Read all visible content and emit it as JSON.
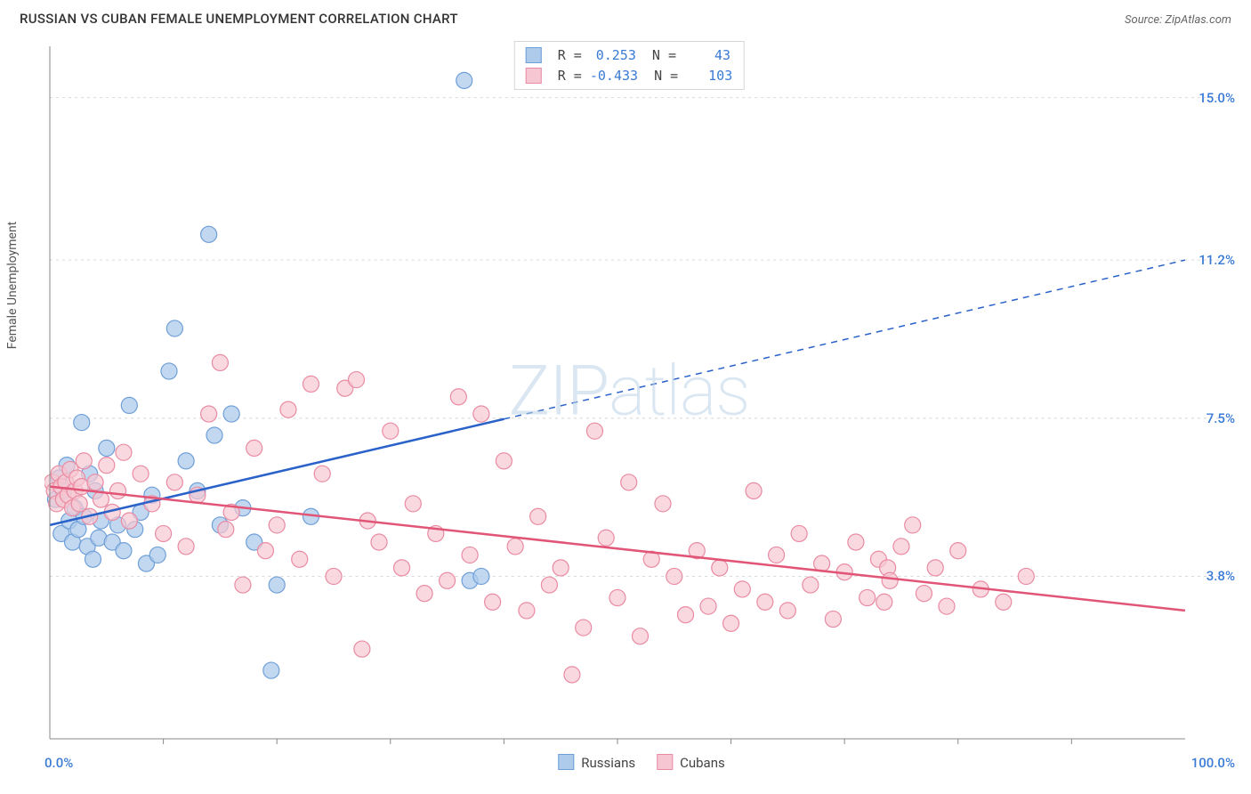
{
  "title": "RUSSIAN VS CUBAN FEMALE UNEMPLOYMENT CORRELATION CHART",
  "source": "Source: ZipAtlas.com",
  "y_axis_label": "Female Unemployment",
  "watermark_a": "ZIP",
  "watermark_b": "atlas",
  "chart": {
    "type": "scatter",
    "xlim": [
      0,
      100
    ],
    "ylim": [
      0,
      16.2
    ],
    "x_ticks_minor_step": 10,
    "y_gridlines": [
      3.8,
      7.5,
      11.2,
      15.0
    ],
    "y_grid_labels": [
      "3.8%",
      "7.5%",
      "11.2%",
      "15.0%"
    ],
    "x_left_label": "0.0%",
    "x_right_label": "100.0%",
    "background_color": "#ffffff",
    "grid_color": "#d9d9d9",
    "axis_color": "#888888",
    "label_color_blue": "#3a7bd5",
    "label_color_pink": "#e86d8a",
    "series": [
      {
        "name": "Russians",
        "legend_label": "Russians",
        "R": "0.253",
        "N": "43",
        "marker_fill": "#aecbeb",
        "marker_stroke": "#6f9fd8",
        "marker_opacity": 0.75,
        "marker_radius": 9,
        "line_color": "#2a62c9",
        "line_solid_end_x": 40,
        "regression": {
          "x1": 0,
          "y1": 5.0,
          "x2": 100,
          "y2": 11.2
        },
        "points": [
          [
            0.5,
            5.6
          ],
          [
            0.8,
            6.1
          ],
          [
            1.0,
            4.8
          ],
          [
            1.2,
            5.8
          ],
          [
            1.5,
            6.4
          ],
          [
            1.7,
            5.1
          ],
          [
            2.0,
            4.6
          ],
          [
            2.2,
            5.4
          ],
          [
            2.5,
            4.9
          ],
          [
            2.8,
            7.4
          ],
          [
            3.0,
            5.2
          ],
          [
            3.3,
            4.5
          ],
          [
            3.5,
            6.2
          ],
          [
            3.8,
            4.2
          ],
          [
            4.0,
            5.8
          ],
          [
            4.3,
            4.7
          ],
          [
            4.5,
            5.1
          ],
          [
            5.0,
            6.8
          ],
          [
            5.5,
            4.6
          ],
          [
            6.0,
            5.0
          ],
          [
            6.5,
            4.4
          ],
          [
            7.0,
            7.8
          ],
          [
            7.5,
            4.9
          ],
          [
            8.0,
            5.3
          ],
          [
            8.5,
            4.1
          ],
          [
            9.0,
            5.7
          ],
          [
            9.5,
            4.3
          ],
          [
            10.5,
            8.6
          ],
          [
            11.0,
            9.6
          ],
          [
            12.0,
            6.5
          ],
          [
            13.0,
            5.8
          ],
          [
            14.0,
            11.8
          ],
          [
            14.5,
            7.1
          ],
          [
            15.0,
            5.0
          ],
          [
            16.0,
            7.6
          ],
          [
            17.0,
            5.4
          ],
          [
            18.0,
            4.6
          ],
          [
            19.5,
            1.6
          ],
          [
            20.0,
            3.6
          ],
          [
            23.0,
            5.2
          ],
          [
            36.5,
            15.4
          ],
          [
            37.0,
            3.7
          ],
          [
            38.0,
            3.8
          ]
        ]
      },
      {
        "name": "Cubans",
        "legend_label": "Cubans",
        "R": "-0.433",
        "N": "103",
        "marker_fill": "#f6c7d2",
        "marker_stroke": "#e98ba3",
        "marker_opacity": 0.7,
        "marker_radius": 9,
        "line_color": "#e15577",
        "line_solid_end_x": 100,
        "regression": {
          "x1": 0,
          "y1": 5.9,
          "x2": 100,
          "y2": 3.0
        },
        "points": [
          [
            0.2,
            6.0
          ],
          [
            0.4,
            5.8
          ],
          [
            0.6,
            5.5
          ],
          [
            0.8,
            6.2
          ],
          [
            1.0,
            5.9
          ],
          [
            1.2,
            5.6
          ],
          [
            1.4,
            6.0
          ],
          [
            1.6,
            5.7
          ],
          [
            1.8,
            6.3
          ],
          [
            2.0,
            5.4
          ],
          [
            2.2,
            5.8
          ],
          [
            2.4,
            6.1
          ],
          [
            2.6,
            5.5
          ],
          [
            2.8,
            5.9
          ],
          [
            3.0,
            6.5
          ],
          [
            3.5,
            5.2
          ],
          [
            4.0,
            6.0
          ],
          [
            4.5,
            5.6
          ],
          [
            5.0,
            6.4
          ],
          [
            5.5,
            5.3
          ],
          [
            6.0,
            5.8
          ],
          [
            6.5,
            6.7
          ],
          [
            7.0,
            5.1
          ],
          [
            8.0,
            6.2
          ],
          [
            9.0,
            5.5
          ],
          [
            10.0,
            4.8
          ],
          [
            11.0,
            6.0
          ],
          [
            12.0,
            4.5
          ],
          [
            13.0,
            5.7
          ],
          [
            14.0,
            7.6
          ],
          [
            15.0,
            8.8
          ],
          [
            15.5,
            4.9
          ],
          [
            16.0,
            5.3
          ],
          [
            17.0,
            3.6
          ],
          [
            18.0,
            6.8
          ],
          [
            19.0,
            4.4
          ],
          [
            20.0,
            5.0
          ],
          [
            21.0,
            7.7
          ],
          [
            22.0,
            4.2
          ],
          [
            23.0,
            8.3
          ],
          [
            24.0,
            6.2
          ],
          [
            25.0,
            3.8
          ],
          [
            26.0,
            8.2
          ],
          [
            27.0,
            8.4
          ],
          [
            27.5,
            2.1
          ],
          [
            28.0,
            5.1
          ],
          [
            29.0,
            4.6
          ],
          [
            30.0,
            7.2
          ],
          [
            31.0,
            4.0
          ],
          [
            32.0,
            5.5
          ],
          [
            33.0,
            3.4
          ],
          [
            34.0,
            4.8
          ],
          [
            35.0,
            3.7
          ],
          [
            36.0,
            8.0
          ],
          [
            37.0,
            4.3
          ],
          [
            38.0,
            7.6
          ],
          [
            39.0,
            3.2
          ],
          [
            40.0,
            6.5
          ],
          [
            41.0,
            4.5
          ],
          [
            42.0,
            3.0
          ],
          [
            43.0,
            5.2
          ],
          [
            44.0,
            3.6
          ],
          [
            45.0,
            4.0
          ],
          [
            46.0,
            1.5
          ],
          [
            47.0,
            2.6
          ],
          [
            48.0,
            7.2
          ],
          [
            49.0,
            4.7
          ],
          [
            50.0,
            3.3
          ],
          [
            51.0,
            6.0
          ],
          [
            52.0,
            2.4
          ],
          [
            53.0,
            4.2
          ],
          [
            54.0,
            5.5
          ],
          [
            55.0,
            3.8
          ],
          [
            56.0,
            2.9
          ],
          [
            57.0,
            4.4
          ],
          [
            58.0,
            3.1
          ],
          [
            59.0,
            4.0
          ],
          [
            60.0,
            2.7
          ],
          [
            61.0,
            3.5
          ],
          [
            62.0,
            5.8
          ],
          [
            63.0,
            3.2
          ],
          [
            64.0,
            4.3
          ],
          [
            65.0,
            3.0
          ],
          [
            66.0,
            4.8
          ],
          [
            67.0,
            3.6
          ],
          [
            68.0,
            4.1
          ],
          [
            69.0,
            2.8
          ],
          [
            70.0,
            3.9
          ],
          [
            71.0,
            4.6
          ],
          [
            72.0,
            3.3
          ],
          [
            73.0,
            4.2
          ],
          [
            73.5,
            3.2
          ],
          [
            73.8,
            4.0
          ],
          [
            74.0,
            3.7
          ],
          [
            75.0,
            4.5
          ],
          [
            76.0,
            5.0
          ],
          [
            77.0,
            3.4
          ],
          [
            78.0,
            4.0
          ],
          [
            79.0,
            3.1
          ],
          [
            80.0,
            4.4
          ],
          [
            82.0,
            3.5
          ],
          [
            84.0,
            3.2
          ],
          [
            86.0,
            3.8
          ]
        ]
      }
    ]
  }
}
